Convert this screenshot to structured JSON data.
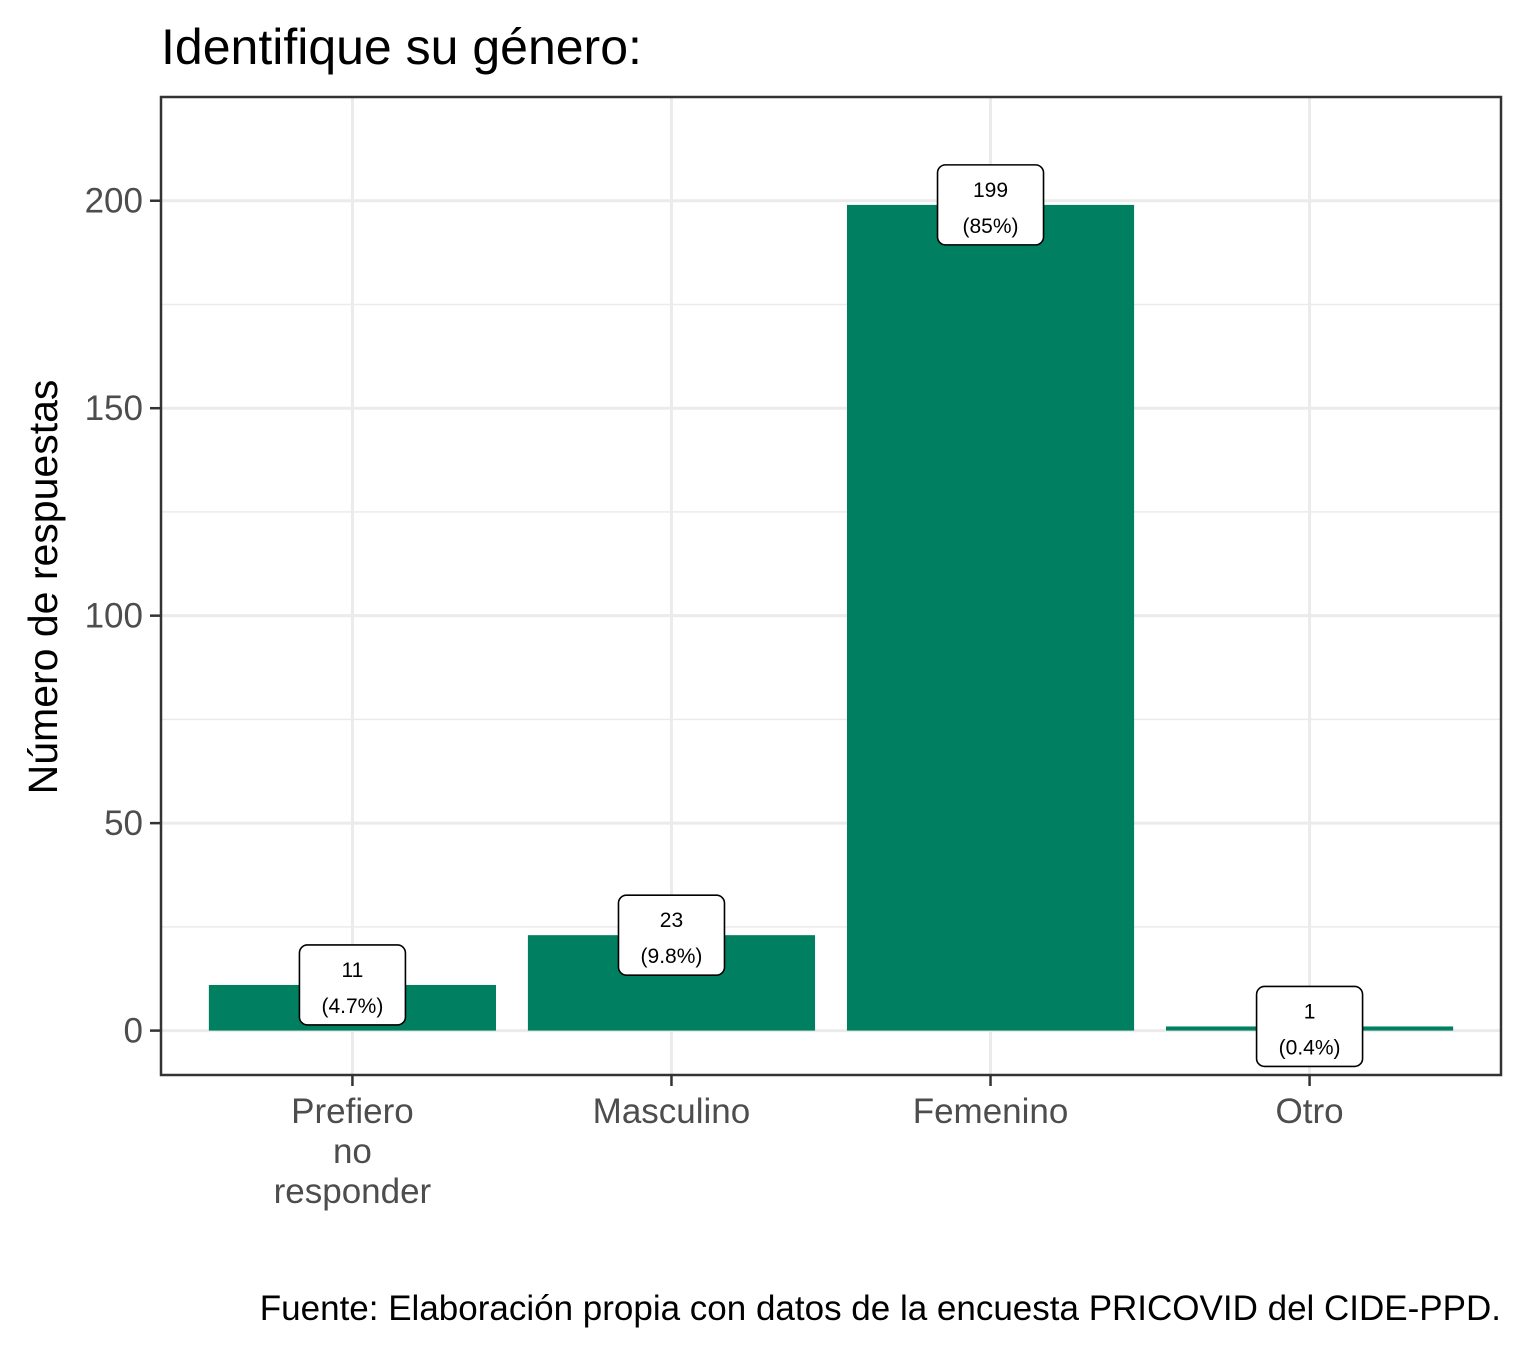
{
  "chart_data": {
    "type": "bar",
    "title": "Identifique su género:",
    "ylabel": "Número de respuestas",
    "xlabel": "",
    "caption": "Fuente: Elaboración propia con datos de la encuesta PRICOVID del CIDE-PPD.",
    "categories": [
      [
        "Prefiero",
        "no",
        "responder"
      ],
      [
        "Masculino"
      ],
      [
        "Femenino"
      ],
      [
        "Otro"
      ]
    ],
    "values": [
      11,
      23,
      199,
      1
    ],
    "data_labels": [
      [
        "11",
        "(4.7%)"
      ],
      [
        "23",
        "(9.8%)"
      ],
      [
        "199",
        "(85%)"
      ],
      [
        "1",
        "(0.4%)"
      ]
    ],
    "ylim": [
      -10.7,
      225
    ],
    "yticks": [
      0,
      50,
      100,
      150,
      200
    ],
    "grid": true,
    "bar_color": "#008060"
  }
}
